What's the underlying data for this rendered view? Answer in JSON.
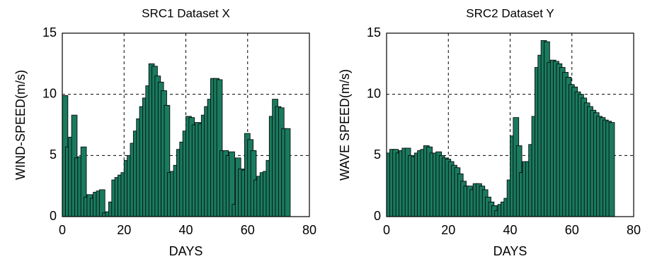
{
  "chart_data": [
    {
      "type": "bar",
      "title": "SRC1 Dataset X",
      "xlabel": "DAYS",
      "ylabel": "WIND-SPEED(m/s)",
      "color": "#1a7a5e",
      "x": [
        0,
        1,
        2,
        3,
        4,
        5,
        6,
        7,
        8,
        9,
        10,
        11,
        12,
        13,
        14,
        15,
        16,
        17,
        18,
        19,
        20,
        21,
        22,
        23,
        24,
        25,
        26,
        27,
        28,
        29,
        30,
        31,
        32,
        33,
        34,
        35,
        36,
        37,
        38,
        39,
        40,
        41,
        42,
        43,
        44,
        45,
        46,
        47,
        48,
        49,
        50,
        51,
        52,
        53,
        54,
        55,
        56,
        57,
        58,
        59,
        60,
        61,
        62,
        63,
        64,
        65,
        66,
        67,
        68,
        69,
        70,
        71,
        72
      ],
      "values": [
        9.9,
        5.7,
        6.5,
        8.3,
        4.8,
        4.9,
        5.7,
        1.6,
        1.8,
        1.5,
        2.0,
        2.1,
        2.2,
        0.3,
        0.4,
        1.2,
        3.0,
        3.2,
        3.4,
        3.6,
        4.6,
        5.0,
        6.0,
        7.0,
        8.0,
        9.0,
        9.7,
        10.7,
        12.5,
        12.3,
        11.5,
        11.0,
        10.3,
        9.1,
        3.6,
        3.7,
        4.2,
        5.5,
        6.1,
        7.0,
        8.2,
        8.1,
        7.5,
        7.7,
        7.6,
        8.3,
        9.0,
        9.6,
        11.3,
        11.3,
        11.2,
        5.4,
        5.4,
        5.0,
        5.3,
        1.0,
        4.8,
        3.9,
        3.8,
        6.8,
        6.3,
        5.4,
        3.0,
        3.3,
        3.6,
        3.7,
        4.6,
        8.2,
        9.6,
        9.0,
        8.9,
        7.2,
        7.2
      ],
      "xlim": [
        0,
        80
      ],
      "xticks": [
        0,
        20,
        40,
        60,
        80
      ],
      "ylim": [
        0,
        15
      ],
      "yticks": [
        0,
        5,
        10,
        15
      ],
      "grid": true
    },
    {
      "type": "bar",
      "title": "SRC2 Dataset Y",
      "xlabel": "DAYS",
      "ylabel": "WAVE SPEED(m/s)",
      "color": "#1a7a5e",
      "x": [
        0,
        1,
        2,
        3,
        4,
        5,
        6,
        7,
        8,
        9,
        10,
        11,
        12,
        13,
        14,
        15,
        16,
        17,
        18,
        19,
        20,
        21,
        22,
        23,
        24,
        25,
        26,
        27,
        28,
        29,
        30,
        31,
        32,
        33,
        34,
        35,
        36,
        37,
        38,
        39,
        40,
        41,
        42,
        43,
        44,
        45,
        46,
        47,
        48,
        49,
        50,
        51,
        52,
        53,
        54,
        55,
        56,
        57,
        58,
        59,
        60,
        61,
        62,
        63,
        64,
        65,
        66,
        67,
        68,
        69,
        70,
        71,
        72
      ],
      "values": [
        5.2,
        5.5,
        5.5,
        5.2,
        5.4,
        5.6,
        5.6,
        5.0,
        4.9,
        5.2,
        5.4,
        5.5,
        5.8,
        5.7,
        5.2,
        5.2,
        5.3,
        5.0,
        4.8,
        4.7,
        4.5,
        4.2,
        4.0,
        3.5,
        2.9,
        2.5,
        2.5,
        2.2,
        2.7,
        2.7,
        2.5,
        2.2,
        1.6,
        1.2,
        0.9,
        0.5,
        1.0,
        1.2,
        1.5,
        3.0,
        6.6,
        8.1,
        5.8,
        3.6,
        4.5,
        4.5,
        5.9,
        8.2,
        12.2,
        13.2,
        14.4,
        14.3,
        12.6,
        12.8,
        12.7,
        12.5,
        12.2,
        11.8,
        11.4,
        10.8,
        10.6,
        10.2,
        10.0,
        9.7,
        9.3,
        9.0,
        8.7,
        8.5,
        8.2,
        8.1,
        7.9,
        7.8,
        7.7
      ],
      "xlim": [
        0,
        80
      ],
      "xticks": [
        0,
        20,
        40,
        60,
        80
      ],
      "ylim": [
        0,
        15
      ],
      "yticks": [
        0,
        5,
        10,
        15
      ],
      "grid": true
    }
  ]
}
